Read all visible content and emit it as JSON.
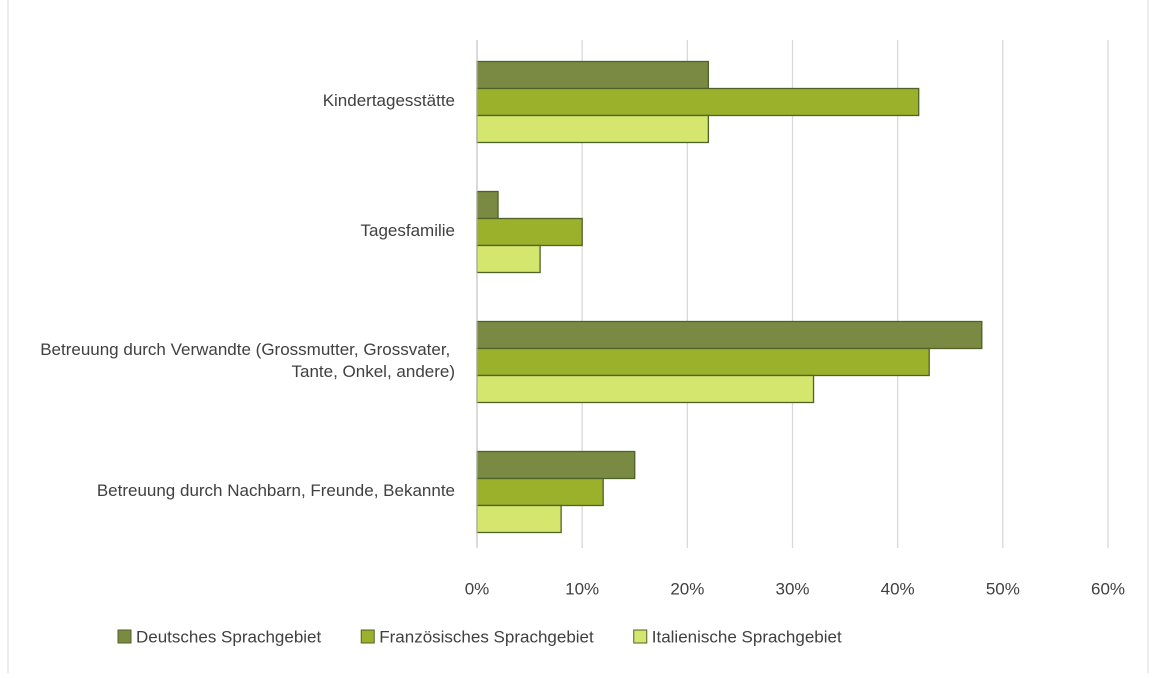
{
  "chart_data": {
    "type": "hbar",
    "categories": [
      "Kindertagesstätte",
      "Tagesfamilie",
      "Betreuung durch Verwandte (Grossmutter, Grossvater, Tante, Onkel, andere)",
      "Betreuung durch Nachbarn, Freunde, Bekannte"
    ],
    "series": [
      {
        "name": "Deutsches Sprachgebiet",
        "color": "#7a8a42",
        "values": [
          22,
          2,
          48,
          15
        ]
      },
      {
        "name": "Französisches Sprachgebiet",
        "color": "#9bb02b",
        "values": [
          42,
          10,
          43,
          12
        ]
      },
      {
        "name": "Italienische Sprachgebiet",
        "color": "#d5e66e",
        "values": [
          22,
          6,
          32,
          8
        ]
      }
    ],
    "xlim": [
      0,
      60
    ],
    "xticks": [
      {
        "value": 0,
        "label": "0%"
      },
      {
        "value": 10,
        "label": "10%"
      },
      {
        "value": 20,
        "label": "20%"
      },
      {
        "value": 30,
        "label": "30%"
      },
      {
        "value": 40,
        "label": "40%"
      },
      {
        "value": 50,
        "label": "50%"
      },
      {
        "value": 60,
        "label": "60%"
      }
    ],
    "grid": true,
    "legend": "bottom"
  }
}
